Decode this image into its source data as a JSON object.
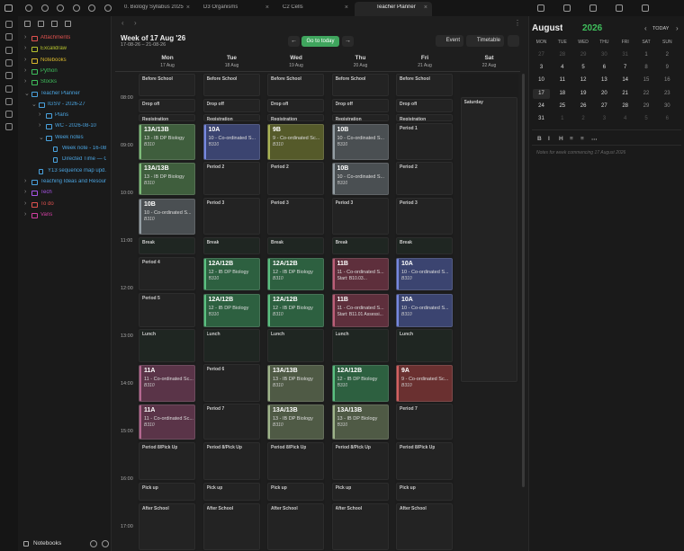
{
  "tabs": [
    "0. Biology Syllabus 2025",
    "D3 Organisms",
    "C2 Cells",
    "Teacher Planner"
  ],
  "sidebar": {
    "tree": [
      {
        "label": "Attachments",
        "color": "#e0524f"
      },
      {
        "label": "Excalidraw",
        "color": "#b6c22e"
      },
      {
        "label": "Notebooks",
        "color": "#d9b72c"
      },
      {
        "label": "Python",
        "color": "#3fbf5c"
      },
      {
        "label": "Stocks",
        "color": "#3fbf5c"
      },
      {
        "label": "Teacher Planner",
        "color": "#4aa3df",
        "children": [
          {
            "label": "IGSV - 2026-27",
            "color": "#4aa3df",
            "children": [
              {
                "label": "Plans",
                "color": "#4aa3df"
              },
              {
                "label": "WC - 2026-08-10",
                "color": "#4aa3df"
              },
              {
                "label": "Week notes",
                "color": "#4aa3df",
                "children": [
                  {
                    "label": "Week note - 16-08-20...",
                    "color": "#4aa3df",
                    "file": true
                  },
                  {
                    "label": "Directed Time — Gui...",
                    "color": "#4aa3df",
                    "file": true
                  }
                ]
              }
            ]
          },
          {
            "label": "Y13 sequence map upd...",
            "color": "#4aa3df",
            "file": true
          }
        ]
      },
      {
        "label": "Teaching Ideas and Resour...",
        "color": "#4aa3df"
      },
      {
        "label": "Tech",
        "color": "#a855e8"
      },
      {
        "label": "To do",
        "color": "#e0524f"
      },
      {
        "label": "Vans",
        "color": "#d23fa2"
      }
    ],
    "vault": "Notebooks"
  },
  "planner": {
    "title": "Week of 17 Aug '26",
    "range": "17-08-26 – 21-08-26",
    "today_button": "Go to today",
    "event_button": "Event",
    "timetable_button": "Timetable",
    "times": [
      "08:00",
      "09:00",
      "10:00",
      "11:00",
      "12:00",
      "13:00",
      "14:00",
      "15:00",
      "16:00",
      "17:00"
    ],
    "days": [
      {
        "name": "Mon",
        "date": "17 Aug",
        "slots": [
          {
            "label": "Before School"
          },
          {
            "label": "Drop off"
          },
          {
            "label": "Registration"
          },
          {
            "title": "13A/13B",
            "subtitle": "13 - IB DP Biology",
            "room": "B310",
            "color": "#3f5e3d"
          },
          {
            "title": "13A/13B",
            "subtitle": "13 - IB DP Biology",
            "room": "B310",
            "color": "#3f5e3d"
          },
          {
            "title": "10B",
            "subtitle": "10 - Co-ordinated S...",
            "room": "B310",
            "color": "#4a4f52"
          },
          {
            "label": "Break"
          },
          {
            "label": "Period 4"
          },
          {
            "label": "Period 5"
          },
          {
            "label": "Lunch"
          },
          {
            "title": "11A",
            "subtitle": "11 - Co-ordinated Sc...",
            "room": "B310",
            "color": "#5a3448"
          },
          {
            "title": "11A",
            "subtitle": "11 - Co-ordinated Sc...",
            "room": "B310",
            "color": "#5a3448"
          },
          {
            "label": "Period 8/Pick Up"
          },
          {
            "label": "Pick up"
          },
          {
            "label": "After School"
          }
        ]
      },
      {
        "name": "Tue",
        "date": "18 Aug",
        "slots": [
          {
            "label": "Before School"
          },
          {
            "label": "Drop off"
          },
          {
            "label": "Registration"
          },
          {
            "title": "10A",
            "subtitle": "10 - Co-ordinated S...",
            "room": "B310",
            "color": "#3b4470"
          },
          {
            "label": "Period 2"
          },
          {
            "label": "Period 3"
          },
          {
            "label": "Break"
          },
          {
            "title": "12A/12B",
            "subtitle": "12 - IB DP Biology",
            "room": "B310",
            "color": "#2d6040"
          },
          {
            "title": "12A/12B",
            "subtitle": "12 - IB DP Biology",
            "room": "B310",
            "color": "#2d6040"
          },
          {
            "label": "Lunch"
          },
          {
            "label": "Period 6"
          },
          {
            "label": "Period 7"
          },
          {
            "label": "Period 8/Pick Up"
          },
          {
            "label": "Pick up"
          },
          {
            "label": "After School"
          }
        ]
      },
      {
        "name": "Wed",
        "date": "19 Aug",
        "slots": [
          {
            "label": "Before School"
          },
          {
            "label": "Drop off"
          },
          {
            "label": "Registration"
          },
          {
            "title": "9B",
            "subtitle": "9 - Co-ordinated Sc...",
            "room": "B310",
            "color": "#555a2a"
          },
          {
            "label": "Period 2"
          },
          {
            "label": "Period 3"
          },
          {
            "label": "Break"
          },
          {
            "title": "12A/12B",
            "subtitle": "12 - IB DP Biology",
            "room": "B310",
            "color": "#2d6040"
          },
          {
            "title": "12A/12B",
            "subtitle": "12 - IB DP Biology",
            "room": "B310",
            "color": "#2d6040"
          },
          {
            "label": "Lunch"
          },
          {
            "title": "13A/13B",
            "subtitle": "13 - IB DP Biology",
            "room": "B310",
            "color": "#4f5a45"
          },
          {
            "title": "13A/13B",
            "subtitle": "13 - IB DP Biology",
            "room": "B310",
            "color": "#4f5a45"
          },
          {
            "label": "Period 8/Pick Up"
          },
          {
            "label": "Pick up"
          },
          {
            "label": "After School"
          }
        ]
      },
      {
        "name": "Thu",
        "date": "20 Aug",
        "slots": [
          {
            "label": "Before School"
          },
          {
            "label": "Drop off"
          },
          {
            "label": "Registration"
          },
          {
            "title": "10B",
            "subtitle": "10 - Co-ordinated S...",
            "room": "B310",
            "color": "#4a4f52"
          },
          {
            "title": "10B",
            "subtitle": "10 - Co-ordinated S...",
            "room": "B310",
            "color": "#4a4f52"
          },
          {
            "label": "Period 3"
          },
          {
            "label": "Break"
          },
          {
            "title": "11B",
            "subtitle": "11 - Co-ordinated S...",
            "note": "Start: B10.03...",
            "color": "#5e2f3c"
          },
          {
            "title": "11B",
            "subtitle": "11 - Co-ordinated S...",
            "note": "Start: B11.01 Assessi...",
            "color": "#5e2f3c"
          },
          {
            "label": "Lunch"
          },
          {
            "title": "12A/12B",
            "subtitle": "12 - IB DP Biology",
            "room": "B310",
            "color": "#2d6040"
          },
          {
            "title": "13A/13B",
            "subtitle": "13 - IB DP Biology",
            "room": "B310",
            "color": "#4f5a45"
          },
          {
            "label": "Period 8/Pick Up"
          },
          {
            "label": "Pick up"
          },
          {
            "label": "After School"
          }
        ]
      },
      {
        "name": "Fri",
        "date": "21 Aug",
        "slots": [
          {
            "label": "Before School"
          },
          {
            "label": "Drop off"
          },
          {
            "label": "Registration"
          },
          {
            "label": "Period 1"
          },
          {
            "label": "Period 2"
          },
          {
            "label": "Period 3"
          },
          {
            "label": "Break"
          },
          {
            "title": "10A",
            "subtitle": "10 - Co-ordinated S...",
            "room": "B310",
            "color": "#3b4470"
          },
          {
            "title": "10A",
            "subtitle": "10 - Co-ordinated S...",
            "room": "B310",
            "color": "#3b4470"
          },
          {
            "label": "Lunch"
          },
          {
            "title": "9A",
            "subtitle": "9 - Co-ordinated Sc...",
            "room": "B310",
            "color": "#6a3030"
          },
          {
            "label": "Period 7"
          },
          {
            "label": "Period 8/Pick Up"
          },
          {
            "label": "Pick up"
          },
          {
            "label": "After School"
          }
        ]
      },
      {
        "name": "Sat",
        "date": "22 Aug",
        "slots": [
          {
            "label": "Saturday"
          }
        ]
      }
    ]
  },
  "calendar": {
    "month": "August",
    "year": "2026",
    "today_button": "TODAY",
    "weekdays": [
      "MON",
      "TUE",
      "WED",
      "THU",
      "FRI",
      "SAT",
      "SUN"
    ],
    "weeks": [
      [
        27,
        28,
        29,
        30,
        31,
        1,
        2
      ],
      [
        3,
        4,
        5,
        6,
        7,
        8,
        9
      ],
      [
        10,
        11,
        12,
        13,
        14,
        15,
        16
      ],
      [
        17,
        18,
        19,
        20,
        21,
        22,
        23
      ],
      [
        24,
        25,
        26,
        27,
        28,
        29,
        30
      ],
      [
        31,
        1,
        2,
        3,
        4,
        5,
        6
      ]
    ],
    "selected": 17,
    "notes_placeholder": "Notes for week commencing 17 August 2026"
  }
}
